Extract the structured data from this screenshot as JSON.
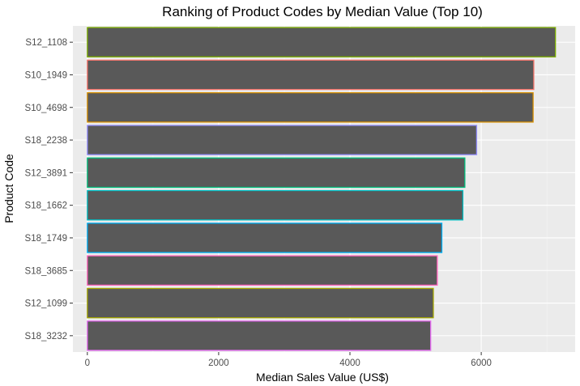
{
  "chart_data": {
    "type": "bar",
    "orientation": "horizontal",
    "title": "Ranking of Product Codes by Median Value (Top 10)",
    "xlabel": "Median Sales Value (US$)",
    "ylabel": "Product Code",
    "xlim": [
      -220,
      7430
    ],
    "x_ticks": [
      0,
      2000,
      4000,
      6000
    ],
    "x_tick_labels": [
      "0",
      "2000",
      "4000",
      "6000"
    ],
    "categories": [
      "S12_1108",
      "S10_1949",
      "S10_4698",
      "S18_2238",
      "S12_3891",
      "S18_1662",
      "S18_1749",
      "S18_3685",
      "S12_1099",
      "S18_3232"
    ],
    "values": [
      7130,
      6800,
      6790,
      5930,
      5750,
      5720,
      5400,
      5330,
      5270,
      5230
    ],
    "bar_fill": "#595959",
    "outline_colors": [
      "#7CAE00",
      "#F8766D",
      "#D89000",
      "#9590FF",
      "#00BF7D",
      "#00BFC4",
      "#00B0F6",
      "#FF62BC",
      "#A3A500",
      "#E76BF3"
    ],
    "panel_background": "#EBEBEB",
    "grid": true,
    "legend": "none"
  }
}
